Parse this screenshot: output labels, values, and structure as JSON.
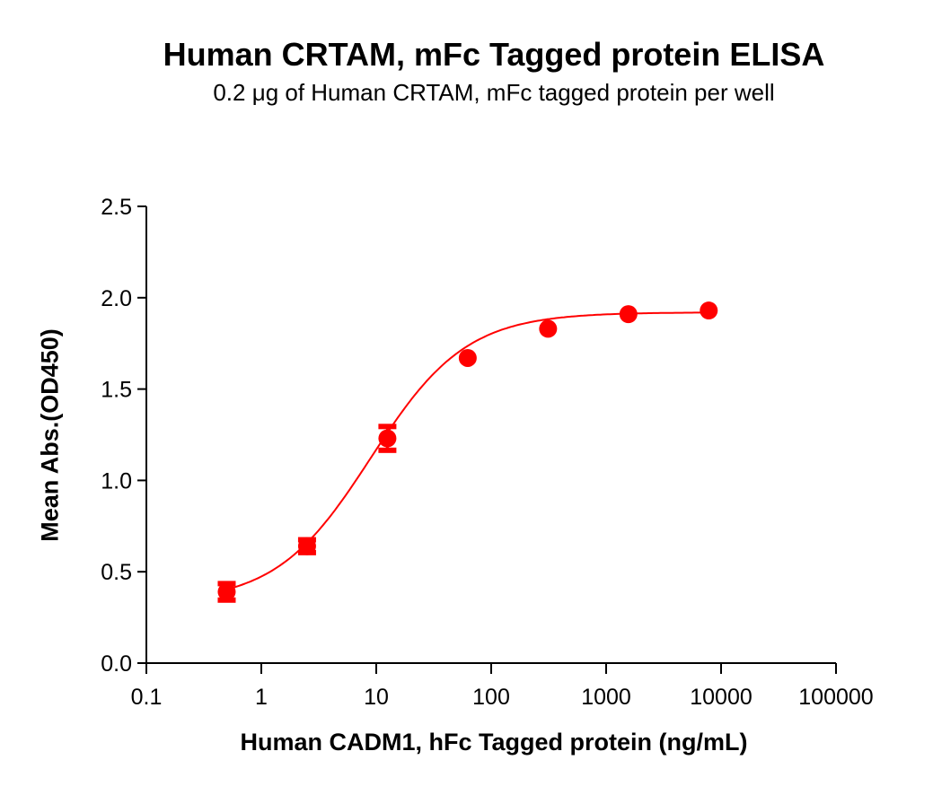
{
  "chart_data": {
    "type": "scatter",
    "title": "Human CRTAM, mFc Tagged protein ELISA",
    "subtitle": "0.2 μg of Human CRTAM, mFc tagged protein per well",
    "xlabel": "Human CADM1, hFc Tagged protein (ng/mL)",
    "ylabel": "Mean Abs.(OD450)",
    "xscale": "log",
    "xlim": [
      0.1,
      100000
    ],
    "ylim": [
      0,
      2.5
    ],
    "xticks": [
      "0.1",
      "1",
      "10",
      "100",
      "1000",
      "10000",
      "100000"
    ],
    "yticks": [
      "0.0",
      "0.5",
      "1.0",
      "1.5",
      "2.0",
      "2.5"
    ],
    "grid": false,
    "series": [
      {
        "name": "Human CRTAM, mFc",
        "color": "#ff0000",
        "x": [
          0.5,
          2.5,
          12.5,
          62.5,
          312.5,
          1562.5,
          7812.5
        ],
        "y": [
          0.39,
          0.64,
          1.23,
          1.67,
          1.83,
          1.91,
          1.93
        ],
        "error": [
          0.05,
          0.04,
          0.07,
          0.02,
          0.02,
          0.02,
          0.02
        ],
        "fit": "4PL sigmoidal curve"
      }
    ]
  }
}
